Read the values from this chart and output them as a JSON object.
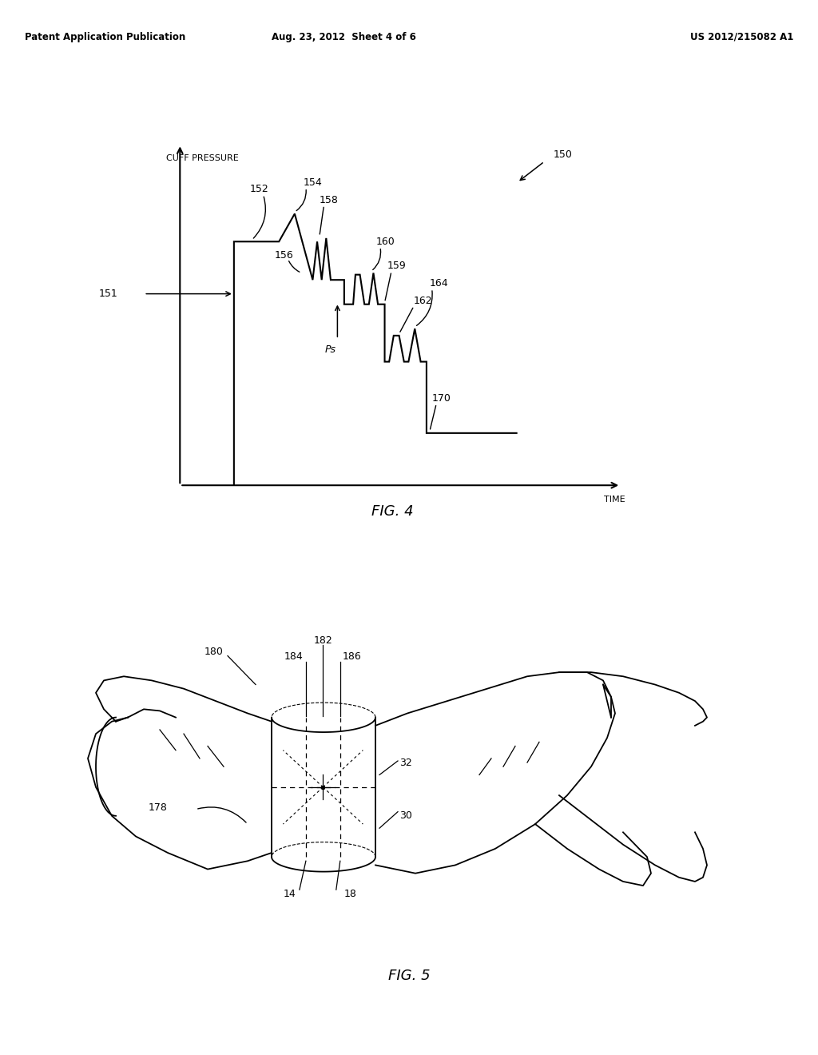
{
  "bg_color": "#ffffff",
  "header_left": "Patent Application Publication",
  "header_mid": "Aug. 23, 2012  Sheet 4 of 6",
  "header_right": "US 2012/215082 A1",
  "fig4_title": "FIG. 4",
  "fig5_title": "FIG. 5",
  "fig4_ylabel": "CUFF PRESSURE",
  "fig4_xlabel": "TIME",
  "label_150": "150",
  "label_151": "151",
  "label_152": "152",
  "label_154": "154",
  "label_156": "156",
  "label_158": "158",
  "label_159": "159",
  "label_160": "160",
  "label_162": "162",
  "label_164": "164",
  "label_170": "170",
  "label_Ps": "Ps",
  "label_14": "14",
  "label_18": "18",
  "label_30": "30",
  "label_32": "32",
  "label_178": "178",
  "label_180": "180",
  "label_182": "182",
  "label_184": "184",
  "label_186": "186"
}
